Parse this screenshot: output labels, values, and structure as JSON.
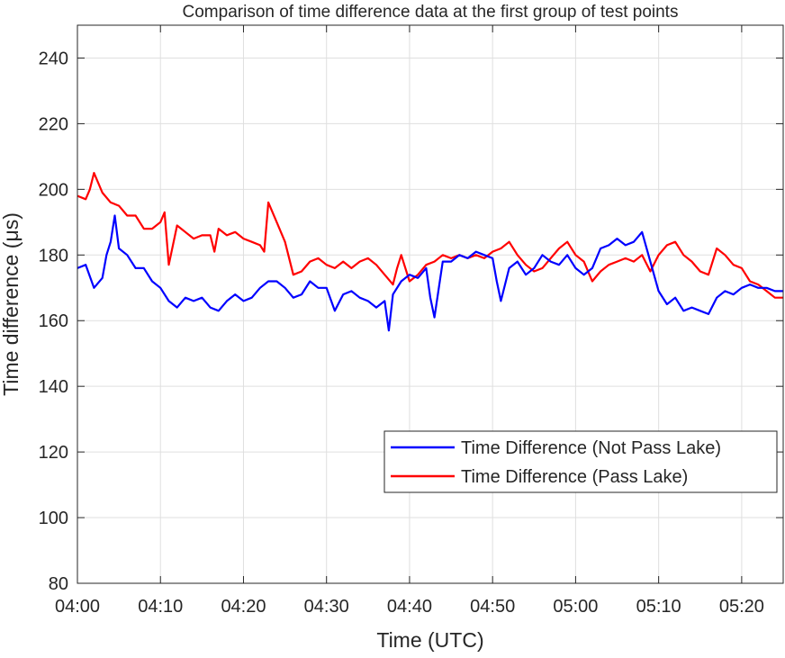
{
  "chart_data": {
    "type": "line",
    "title": "Comparison of time difference data at the first group of test points",
    "xlabel": "Time (UTC)",
    "ylabel": "Time difference  (μs)",
    "xlim": [
      "04:00",
      "05:25"
    ],
    "ylim": [
      80,
      250
    ],
    "x_ticks": [
      "04:00",
      "04:10",
      "04:20",
      "04:30",
      "04:40",
      "04:50",
      "05:00",
      "05:10",
      "05:20"
    ],
    "y_ticks": [
      80,
      100,
      120,
      140,
      160,
      180,
      200,
      220,
      240
    ],
    "grid": true,
    "legend_position": "lower-right",
    "series": [
      {
        "name": "Time Difference (Not Pass Lake)",
        "color": "#0000ff",
        "points": [
          [
            "04:00",
            176
          ],
          [
            "04:01",
            177
          ],
          [
            "04:02",
            170
          ],
          [
            "04:03",
            173
          ],
          [
            "04:03:30",
            180
          ],
          [
            "04:04",
            184
          ],
          [
            "04:04:30",
            192
          ],
          [
            "04:05",
            182
          ],
          [
            "04:06",
            180
          ],
          [
            "04:07",
            176
          ],
          [
            "04:08",
            176
          ],
          [
            "04:09",
            172
          ],
          [
            "04:10",
            170
          ],
          [
            "04:11",
            166
          ],
          [
            "04:12",
            164
          ],
          [
            "04:13",
            167
          ],
          [
            "04:14",
            166
          ],
          [
            "04:15",
            167
          ],
          [
            "04:16",
            164
          ],
          [
            "04:17",
            163
          ],
          [
            "04:18",
            166
          ],
          [
            "04:19",
            168
          ],
          [
            "04:20",
            166
          ],
          [
            "04:21",
            167
          ],
          [
            "04:22",
            170
          ],
          [
            "04:23",
            172
          ],
          [
            "04:24",
            172
          ],
          [
            "04:25",
            170
          ],
          [
            "04:26",
            167
          ],
          [
            "04:27",
            168
          ],
          [
            "04:28",
            172
          ],
          [
            "04:29",
            170
          ],
          [
            "04:30",
            170
          ],
          [
            "04:31",
            163
          ],
          [
            "04:32",
            168
          ],
          [
            "04:33",
            169
          ],
          [
            "04:34",
            167
          ],
          [
            "04:35",
            166
          ],
          [
            "04:36",
            164
          ],
          [
            "04:37",
            166
          ],
          [
            "04:37:30",
            157
          ],
          [
            "04:38",
            168
          ],
          [
            "04:39",
            172
          ],
          [
            "04:40",
            174
          ],
          [
            "04:41",
            173
          ],
          [
            "04:42",
            176
          ],
          [
            "04:42:30",
            167
          ],
          [
            "04:43",
            161
          ],
          [
            "04:44",
            178
          ],
          [
            "04:45",
            178
          ],
          [
            "04:46",
            180
          ],
          [
            "04:47",
            179
          ],
          [
            "04:48",
            181
          ],
          [
            "04:49",
            180
          ],
          [
            "04:50",
            179
          ],
          [
            "04:50:30",
            172
          ],
          [
            "04:51",
            166
          ],
          [
            "04:52",
            176
          ],
          [
            "04:53",
            178
          ],
          [
            "04:54",
            174
          ],
          [
            "04:55",
            176
          ],
          [
            "04:56",
            180
          ],
          [
            "04:57",
            178
          ],
          [
            "04:58",
            177
          ],
          [
            "04:59",
            180
          ],
          [
            "05:00",
            176
          ],
          [
            "05:01",
            174
          ],
          [
            "05:02",
            176
          ],
          [
            "05:03",
            182
          ],
          [
            "05:04",
            183
          ],
          [
            "05:05",
            185
          ],
          [
            "05:06",
            183
          ],
          [
            "05:07",
            184
          ],
          [
            "05:08",
            187
          ],
          [
            "05:09",
            178
          ],
          [
            "05:10",
            169
          ],
          [
            "05:11",
            165
          ],
          [
            "05:12",
            167
          ],
          [
            "05:13",
            163
          ],
          [
            "05:14",
            164
          ],
          [
            "05:15",
            163
          ],
          [
            "05:16",
            162
          ],
          [
            "05:17",
            167
          ],
          [
            "05:18",
            169
          ],
          [
            "05:19",
            168
          ],
          [
            "05:20",
            170
          ],
          [
            "05:21",
            171
          ],
          [
            "05:22",
            170
          ],
          [
            "05:23",
            170
          ],
          [
            "05:24",
            169
          ],
          [
            "05:25",
            169
          ]
        ]
      },
      {
        "name": "Time Difference (Pass Lake)",
        "color": "#ff0000",
        "points": [
          [
            "04:00",
            198
          ],
          [
            "04:01",
            197
          ],
          [
            "04:01:30",
            200
          ],
          [
            "04:02",
            205
          ],
          [
            "04:03",
            199
          ],
          [
            "04:04",
            196
          ],
          [
            "04:05",
            195
          ],
          [
            "04:06",
            192
          ],
          [
            "04:07",
            192
          ],
          [
            "04:08",
            188
          ],
          [
            "04:09",
            188
          ],
          [
            "04:10",
            190
          ],
          [
            "04:10:30",
            193
          ],
          [
            "04:11",
            177
          ],
          [
            "04:12",
            189
          ],
          [
            "04:13",
            187
          ],
          [
            "04:14",
            185
          ],
          [
            "04:15",
            186
          ],
          [
            "04:16",
            186
          ],
          [
            "04:16:30",
            181
          ],
          [
            "04:17",
            188
          ],
          [
            "04:18",
            186
          ],
          [
            "04:19",
            187
          ],
          [
            "04:20",
            185
          ],
          [
            "04:21",
            184
          ],
          [
            "04:22",
            183
          ],
          [
            "04:22:30",
            181
          ],
          [
            "04:23",
            196
          ],
          [
            "04:24",
            190
          ],
          [
            "04:25",
            184
          ],
          [
            "04:26",
            174
          ],
          [
            "04:27",
            175
          ],
          [
            "04:28",
            178
          ],
          [
            "04:29",
            179
          ],
          [
            "04:30",
            177
          ],
          [
            "04:31",
            176
          ],
          [
            "04:32",
            178
          ],
          [
            "04:33",
            176
          ],
          [
            "04:34",
            178
          ],
          [
            "04:35",
            179
          ],
          [
            "04:36",
            177
          ],
          [
            "04:37",
            174
          ],
          [
            "04:38",
            171
          ],
          [
            "04:38:30",
            176
          ],
          [
            "04:39",
            180
          ],
          [
            "04:40",
            172
          ],
          [
            "04:41",
            174
          ],
          [
            "04:42",
            177
          ],
          [
            "04:43",
            178
          ],
          [
            "04:44",
            180
          ],
          [
            "04:45",
            179
          ],
          [
            "04:46",
            180
          ],
          [
            "04:47",
            179
          ],
          [
            "04:48",
            180
          ],
          [
            "04:49",
            179
          ],
          [
            "04:50",
            181
          ],
          [
            "04:51",
            182
          ],
          [
            "04:52",
            184
          ],
          [
            "04:53",
            180
          ],
          [
            "04:54",
            177
          ],
          [
            "04:55",
            175
          ],
          [
            "04:56",
            176
          ],
          [
            "04:57",
            179
          ],
          [
            "04:58",
            182
          ],
          [
            "04:59",
            184
          ],
          [
            "05:00",
            180
          ],
          [
            "05:01",
            178
          ],
          [
            "05:02",
            172
          ],
          [
            "05:03",
            175
          ],
          [
            "05:04",
            177
          ],
          [
            "05:05",
            178
          ],
          [
            "05:06",
            179
          ],
          [
            "05:07",
            178
          ],
          [
            "05:08",
            180
          ],
          [
            "05:09",
            175
          ],
          [
            "05:10",
            180
          ],
          [
            "05:11",
            183
          ],
          [
            "05:12",
            184
          ],
          [
            "05:13",
            180
          ],
          [
            "05:14",
            178
          ],
          [
            "05:15",
            175
          ],
          [
            "05:16",
            174
          ],
          [
            "05:17",
            182
          ],
          [
            "05:18",
            180
          ],
          [
            "05:19",
            177
          ],
          [
            "05:20",
            176
          ],
          [
            "05:21",
            172
          ],
          [
            "05:22",
            171
          ],
          [
            "05:23",
            169
          ],
          [
            "05:24",
            167
          ],
          [
            "05:25",
            167
          ]
        ]
      }
    ]
  }
}
